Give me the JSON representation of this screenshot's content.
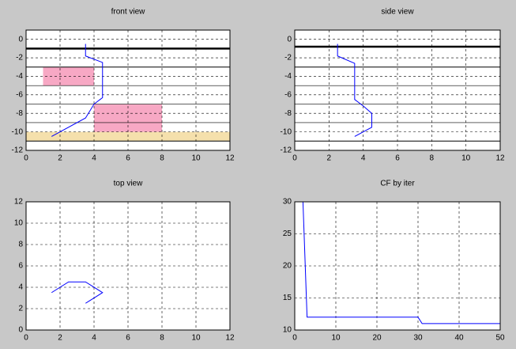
{
  "chart_data": [
    {
      "type": "line",
      "title": "front view",
      "xlim": [
        0,
        12
      ],
      "ylim": [
        -12,
        1
      ],
      "xticks": [
        0,
        2,
        4,
        6,
        8,
        10,
        12
      ],
      "yticks": [
        -12,
        -10,
        -8,
        -6,
        -4,
        -2,
        0
      ],
      "grid": true,
      "rects": [
        {
          "x": [
            0,
            12
          ],
          "y": [
            -11,
            -10
          ],
          "color": "#f5e0ac"
        },
        {
          "x": [
            1,
            4
          ],
          "y": [
            -5,
            -3
          ],
          "color": "#f7a8c4"
        },
        {
          "x": [
            4,
            8
          ],
          "y": [
            -10,
            -7
          ],
          "color": "#f7a8c4"
        }
      ],
      "hlines": [
        {
          "y": -1,
          "width": 2.5
        },
        {
          "y": -3,
          "width": 1
        },
        {
          "y": -5,
          "width": 0.6
        },
        {
          "y": -7,
          "width": 0.6
        },
        {
          "y": -9,
          "width": 0.6
        },
        {
          "y": -11,
          "width": 1
        }
      ],
      "series": [
        {
          "color": "#0000ff",
          "x": [
            3.5,
            3.5,
            4.5,
            4.5,
            4,
            3.5,
            1.5
          ],
          "values": [
            -0.5,
            -1.8,
            -2.5,
            -6.3,
            -7,
            -8.5,
            -10.5
          ]
        }
      ]
    },
    {
      "type": "line",
      "title": "side view",
      "xlim": [
        0,
        12
      ],
      "ylim": [
        -12,
        1
      ],
      "xticks": [
        0,
        2,
        4,
        6,
        8,
        10,
        12
      ],
      "yticks": [
        -12,
        -10,
        -8,
        -6,
        -4,
        -2,
        0
      ],
      "grid": true,
      "rects": [],
      "hlines": [
        {
          "y": -0.8,
          "width": 2.5
        },
        {
          "y": -3,
          "width": 1
        },
        {
          "y": -5,
          "width": 0.6
        },
        {
          "y": -7,
          "width": 0.6
        },
        {
          "y": -9,
          "width": 0.6
        },
        {
          "y": -11,
          "width": 1
        }
      ],
      "series": [
        {
          "color": "#0000ff",
          "x": [
            2.5,
            2.5,
            3.5,
            3.5,
            4,
            4.5,
            4.5,
            3.5
          ],
          "values": [
            -0.5,
            -1.8,
            -2.6,
            -6.5,
            -7.2,
            -8,
            -9.5,
            -10.5
          ]
        }
      ]
    },
    {
      "type": "line",
      "title": "top view",
      "xlim": [
        0,
        12
      ],
      "ylim": [
        0,
        12
      ],
      "xticks": [
        0,
        2,
        4,
        6,
        8,
        10,
        12
      ],
      "yticks": [
        0,
        2,
        4,
        6,
        8,
        10,
        12
      ],
      "grid": true,
      "rects": [],
      "hlines": [],
      "series": [
        {
          "color": "#0000ff",
          "x": [
            1.5,
            2.5,
            3.5,
            4.5,
            3.5
          ],
          "values": [
            3.5,
            4.5,
            4.5,
            3.5,
            2.5
          ]
        }
      ]
    },
    {
      "type": "line",
      "title": "CF by iter",
      "xlim": [
        0,
        50
      ],
      "ylim": [
        10,
        30
      ],
      "xticks": [
        0,
        10,
        20,
        30,
        40,
        50
      ],
      "yticks": [
        10,
        15,
        20,
        25,
        30
      ],
      "grid": true,
      "rects": [],
      "hlines": [],
      "series": [
        {
          "color": "#0000ff",
          "x": [
            1,
            2,
            3,
            30,
            31,
            50
          ],
          "values": [
            30,
            30,
            12,
            12,
            11,
            11
          ]
        }
      ]
    }
  ]
}
